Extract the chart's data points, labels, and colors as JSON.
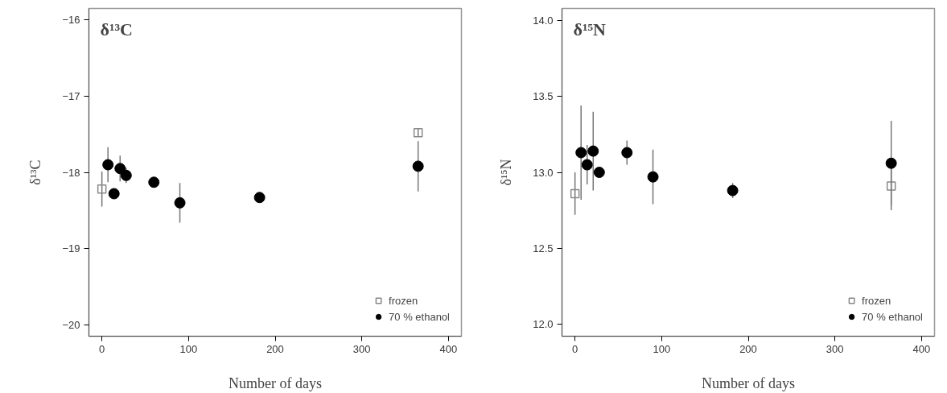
{
  "chart_data": [
    {
      "type": "scatter",
      "title": "δ¹³C",
      "xlabel": "Number of days",
      "ylabel": "δ¹³C",
      "xlim": [
        -15,
        415
      ],
      "ylim": [
        -20.15,
        -15.85
      ],
      "xticks": [
        0,
        100,
        200,
        300,
        400
      ],
      "yticks": [
        -20,
        -19,
        -18,
        -17,
        -16
      ],
      "grid": false,
      "legend": "bottom right",
      "series": [
        {
          "name": "frozen",
          "color": "#888888",
          "marker": "square",
          "x": [
            0,
            365
          ],
          "values": [
            -18.22,
            -17.48
          ],
          "errors": [
            0.23,
            0.05
          ]
        },
        {
          "name": "70 % ethanol",
          "color": "#000000",
          "marker": "circle",
          "x": [
            7,
            14,
            21,
            28,
            60,
            90,
            182,
            365
          ],
          "values": [
            -17.9,
            -18.28,
            -17.95,
            -18.04,
            -18.13,
            -18.4,
            -18.33,
            -17.92
          ],
          "errors": [
            0.23,
            0.03,
            0.17,
            0.1,
            0.07,
            0.26,
            0.03,
            0.33
          ]
        }
      ]
    },
    {
      "type": "scatter",
      "title": "δ¹⁵N",
      "xlabel": "Number of days",
      "ylabel": "δ¹⁵N",
      "xlim": [
        -15,
        415
      ],
      "ylim": [
        11.92,
        14.08
      ],
      "xticks": [
        0,
        100,
        200,
        300,
        400
      ],
      "yticks": [
        {
          "value": 12,
          "label": "12.0"
        },
        12.5,
        {
          "value": 13,
          "label": "13.0"
        },
        13.5,
        {
          "value": 14,
          "label": "14.0"
        }
      ],
      "grid": false,
      "legend": "bottom right",
      "series": [
        {
          "name": "frozen",
          "color": "#888888",
          "marker": "square",
          "x": [
            0,
            365
          ],
          "values": [
            12.86,
            12.91
          ],
          "errors": [
            0.14,
            0.16
          ]
        },
        {
          "name": "70 % ethanol",
          "color": "#000000",
          "marker": "circle",
          "x": [
            7,
            14,
            21,
            28,
            60,
            90,
            182,
            365
          ],
          "values": [
            13.13,
            13.05,
            13.14,
            13.0,
            13.13,
            12.97,
            12.88,
            13.06
          ],
          "errors": [
            0.31,
            0.13,
            0.26,
            0.02,
            0.08,
            0.18,
            0.05,
            0.28
          ]
        }
      ]
    }
  ]
}
